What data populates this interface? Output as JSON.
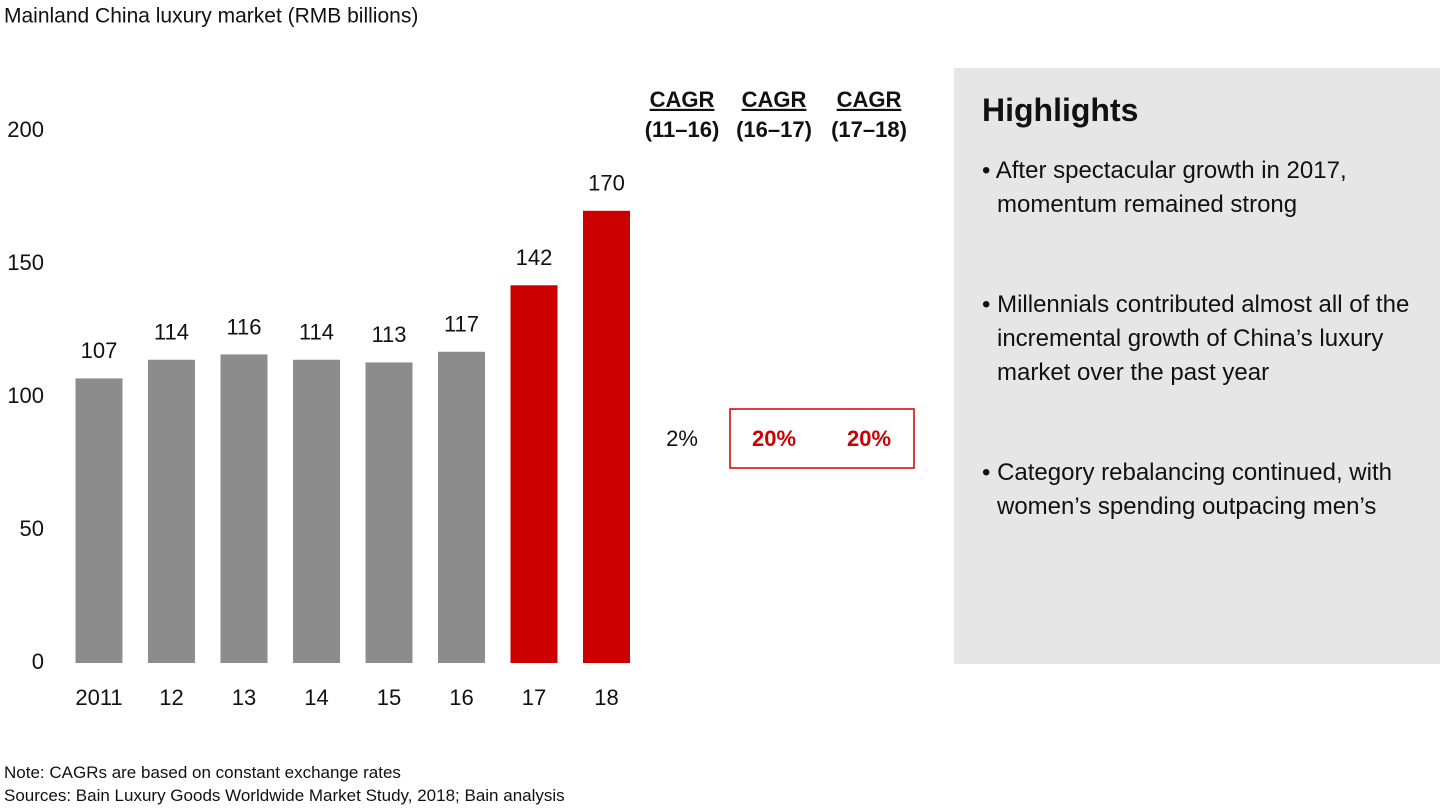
{
  "chart_data": {
    "type": "bar",
    "title": "Mainland China luxury market (RMB billions)",
    "categories": [
      "2011",
      "12",
      "13",
      "14",
      "15",
      "16",
      "17",
      "18"
    ],
    "values": [
      107,
      114,
      116,
      114,
      113,
      117,
      142,
      170
    ],
    "colors": [
      "#8c8c8c",
      "#8c8c8c",
      "#8c8c8c",
      "#8c8c8c",
      "#8c8c8c",
      "#8c8c8c",
      "#cc0000",
      "#cc0000"
    ],
    "ylim": [
      0,
      200
    ],
    "yticks": [
      0,
      50,
      100,
      150,
      200
    ],
    "grid": false,
    "cagr": [
      {
        "label": "CAGR",
        "period": "(11–16)",
        "value": "2%"
      },
      {
        "label": "CAGR",
        "period": "(16–17)",
        "value": "20%"
      },
      {
        "label": "CAGR",
        "period": "(17–18)",
        "value": "20%"
      }
    ]
  },
  "highlights": {
    "title": "Highlights",
    "items": [
      "After spectacular growth in 2017, momentum remained strong",
      "Millennials contributed almost all of the incremental growth of China’s luxury market over the past year",
      "Category rebalancing continued, with women’s spending outpacing men’s"
    ]
  },
  "footer": {
    "note": "Note: CAGRs are based on constant exchange rates",
    "sources": "Sources: Bain Luxury Goods Worldwide Market Study, 2018; Bain analysis"
  }
}
